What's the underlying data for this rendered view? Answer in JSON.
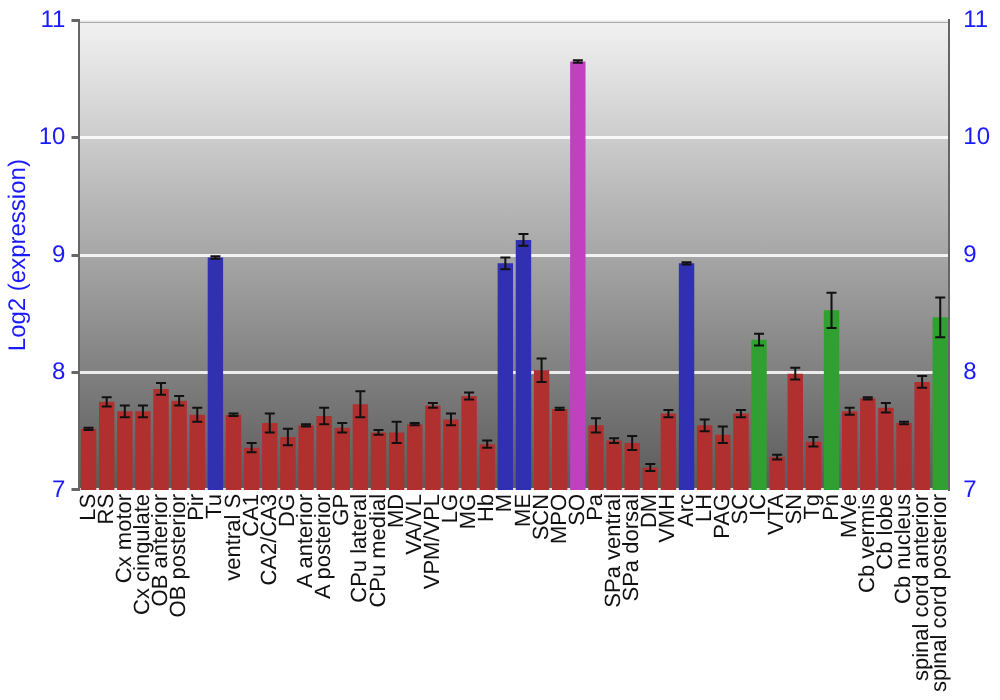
{
  "chart_data": {
    "type": "bar",
    "ylabel": "Log2 (expression)",
    "categories": [
      "LS",
      "RS",
      "Cx motor",
      "Cx cingulate",
      "OB anterior",
      "OB posterior",
      "Pir",
      "Tu",
      "ventral S",
      "CA1",
      "CA2/CA3",
      "DG",
      "A anterior",
      "A posterior",
      "GP",
      "CPu lateral",
      "CPu medial",
      "MD",
      "VA/VL",
      "VPM/VPL",
      "LG",
      "MG",
      "Hb",
      "M",
      "ME",
      "SCN",
      "MPO",
      "SO",
      "Pa",
      "SPa ventral",
      "SPa dorsal",
      "DM",
      "VMH",
      "Arc",
      "LH",
      "PAG",
      "SC",
      "IC",
      "VTA",
      "SN",
      "Tg",
      "Pn",
      "MVe",
      "Cb vermis",
      "Cb lobe",
      "Cb nucleus",
      "spinal cord anterior",
      "spinal cord posterior"
    ],
    "values": [
      7.52,
      7.75,
      7.67,
      7.67,
      7.86,
      7.76,
      7.64,
      8.98,
      7.64,
      7.36,
      7.57,
      7.45,
      7.55,
      7.63,
      7.53,
      7.73,
      7.49,
      7.49,
      7.56,
      7.72,
      7.6,
      7.8,
      7.39,
      8.93,
      9.13,
      8.02,
      7.69,
      10.65,
      7.55,
      7.42,
      7.4,
      7.19,
      7.65,
      8.93,
      7.55,
      7.47,
      7.65,
      8.28,
      7.28,
      7.99,
      7.41,
      8.53,
      7.67,
      7.78,
      7.7,
      7.57,
      7.92,
      8.47
    ],
    "errors": [
      0.01,
      0.04,
      0.05,
      0.05,
      0.05,
      0.04,
      0.06,
      0.01,
      0.01,
      0.04,
      0.08,
      0.07,
      0.01,
      0.07,
      0.04,
      0.11,
      0.02,
      0.09,
      0.01,
      0.02,
      0.05,
      0.03,
      0.03,
      0.05,
      0.05,
      0.1,
      0.01,
      0.01,
      0.06,
      0.02,
      0.06,
      0.03,
      0.03,
      0.01,
      0.05,
      0.07,
      0.03,
      0.05,
      0.02,
      0.05,
      0.04,
      0.15,
      0.03,
      0.01,
      0.04,
      0.01,
      0.05,
      0.17
    ],
    "colors": [
      "#b03030",
      "#b03030",
      "#b03030",
      "#b03030",
      "#b03030",
      "#b03030",
      "#b03030",
      "#3030b0",
      "#b03030",
      "#b03030",
      "#b03030",
      "#b03030",
      "#b03030",
      "#b03030",
      "#b03030",
      "#b03030",
      "#b03030",
      "#b03030",
      "#b03030",
      "#b03030",
      "#b03030",
      "#b03030",
      "#b03030",
      "#3030b0",
      "#3030b0",
      "#b03030",
      "#b03030",
      "#c040c0",
      "#b03030",
      "#b03030",
      "#b03030",
      "#b03030",
      "#b03030",
      "#3030b0",
      "#b03030",
      "#b03030",
      "#b03030",
      "#30a030",
      "#b03030",
      "#b03030",
      "#b03030",
      "#30a030",
      "#b03030",
      "#b03030",
      "#b03030",
      "#b03030",
      "#b03030",
      "#30a030"
    ],
    "ylim": [
      7,
      11
    ],
    "yticks": [
      7,
      8,
      9,
      10,
      11
    ],
    "y2lim": [
      7,
      11
    ],
    "y2ticks": [
      7,
      8,
      9,
      10,
      11
    ],
    "grid": "y",
    "legend": false
  }
}
